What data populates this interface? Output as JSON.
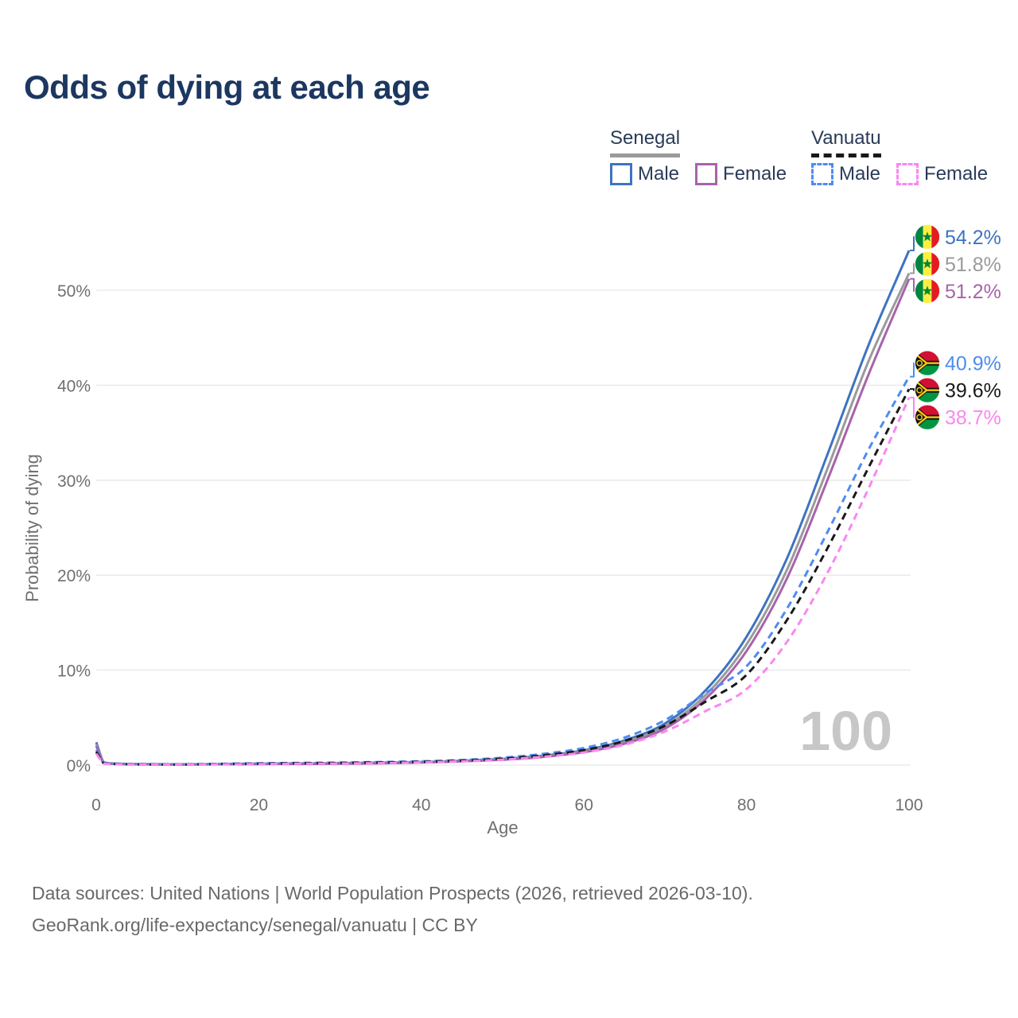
{
  "title": "Odds of dying at each age",
  "watermark": "100",
  "legend": {
    "groups": [
      {
        "name": "Senegal",
        "items": [
          {
            "label": "Male"
          },
          {
            "label": "Female"
          }
        ]
      },
      {
        "name": "Vanuatu",
        "items": [
          {
            "label": "Male"
          },
          {
            "label": "Female"
          }
        ]
      }
    ]
  },
  "footer": {
    "line1": "Data sources: United Nations | World Population Prospects (2026, retrieved 2026-03-10).",
    "line2": "GeoRank.org/life-expectancy/senegal/vanuatu | CC BY"
  },
  "colors": {
    "title": "#1c3760",
    "legend_text": "#2a3b58",
    "axis_text": "#6f6f6f",
    "gridline": "#ebebeb",
    "watermark": "#c7c7c7",
    "footer_text": "#696969"
  },
  "chart_data": {
    "type": "line",
    "title": "Odds of dying at each age",
    "xlabel": "Age",
    "ylabel": "Probability of dying",
    "xlim": [
      0,
      100
    ],
    "ylim": [
      0,
      56
    ],
    "x_ticks": [
      0,
      20,
      40,
      60,
      80,
      100
    ],
    "y_ticks": [
      0,
      10,
      20,
      30,
      40,
      50
    ],
    "y_tick_suffix": "%",
    "grid": true,
    "legend_position": "top-right",
    "age_indicator": "100",
    "ages": [
      0,
      1,
      2,
      3,
      5,
      10,
      15,
      20,
      25,
      30,
      35,
      40,
      45,
      50,
      55,
      60,
      65,
      70,
      75,
      80,
      85,
      90,
      95,
      100
    ],
    "series": [
      {
        "name": "Senegal Male",
        "country": "Senegal",
        "sex": "Male",
        "style": "solid",
        "color": "#3e73c1",
        "flag": "senegal",
        "end_label": "54.2%",
        "end_value": 54.2,
        "values": [
          2.4,
          0.28,
          0.18,
          0.14,
          0.11,
          0.08,
          0.11,
          0.15,
          0.18,
          0.21,
          0.26,
          0.33,
          0.46,
          0.66,
          1.0,
          1.55,
          2.6,
          4.4,
          7.9,
          13.5,
          21.8,
          32.8,
          44.2,
          54.2
        ]
      },
      {
        "name": "Senegal Both sexes",
        "country": "Senegal",
        "sex": "Both sexes",
        "style": "solid",
        "color": "#9a9a9a",
        "flag": "senegal",
        "end_label": "51.8%",
        "end_value": 51.8,
        "values": [
          2.2,
          0.25,
          0.16,
          0.12,
          0.1,
          0.07,
          0.09,
          0.12,
          0.15,
          0.17,
          0.22,
          0.3,
          0.42,
          0.61,
          0.93,
          1.46,
          2.4,
          4.1,
          7.4,
          12.7,
          20.6,
          31.3,
          42.5,
          51.8
        ]
      },
      {
        "name": "Senegal Female",
        "country": "Senegal",
        "sex": "Female",
        "style": "solid",
        "color": "#a763ab",
        "flag": "senegal",
        "end_label": "51.2%",
        "end_value": 51.2,
        "values": [
          2.0,
          0.22,
          0.14,
          0.11,
          0.09,
          0.06,
          0.08,
          0.1,
          0.12,
          0.14,
          0.19,
          0.27,
          0.39,
          0.56,
          0.86,
          1.36,
          2.25,
          3.85,
          7.0,
          12.0,
          19.7,
          30.1,
          41.1,
          51.2
        ]
      },
      {
        "name": "Vanuatu Male",
        "country": "Vanuatu",
        "sex": "Male",
        "style": "dashed",
        "color": "#4e8cf0",
        "flag": "vanuatu",
        "end_label": "40.9%",
        "end_value": 40.9,
        "values": [
          1.6,
          0.2,
          0.13,
          0.1,
          0.08,
          0.07,
          0.13,
          0.19,
          0.23,
          0.27,
          0.33,
          0.4,
          0.54,
          0.78,
          1.18,
          1.8,
          2.9,
          4.75,
          7.6,
          10.4,
          16.5,
          24.6,
          33.2,
          40.9
        ]
      },
      {
        "name": "Vanuatu Both sexes",
        "country": "Vanuatu",
        "sex": "Both sexes",
        "style": "dashed",
        "color": "#191919",
        "flag": "vanuatu",
        "end_label": "39.6%",
        "end_value": 39.6,
        "values": [
          1.4,
          0.18,
          0.12,
          0.09,
          0.07,
          0.06,
          0.11,
          0.15,
          0.19,
          0.22,
          0.27,
          0.34,
          0.47,
          0.68,
          1.03,
          1.58,
          2.55,
          4.15,
          6.7,
          9.5,
          15.3,
          22.9,
          31.3,
          39.6
        ]
      },
      {
        "name": "Vanuatu Female",
        "country": "Vanuatu",
        "sex": "Female",
        "style": "dashed",
        "color": "#fa87f1",
        "flag": "vanuatu",
        "end_label": "38.7%",
        "end_value": 38.7,
        "values": [
          1.2,
          0.16,
          0.1,
          0.08,
          0.06,
          0.05,
          0.08,
          0.11,
          0.14,
          0.17,
          0.21,
          0.29,
          0.4,
          0.57,
          0.88,
          1.33,
          2.15,
          3.55,
          5.7,
          8.0,
          13.0,
          20.3,
          29.1,
          38.7
        ]
      }
    ]
  }
}
